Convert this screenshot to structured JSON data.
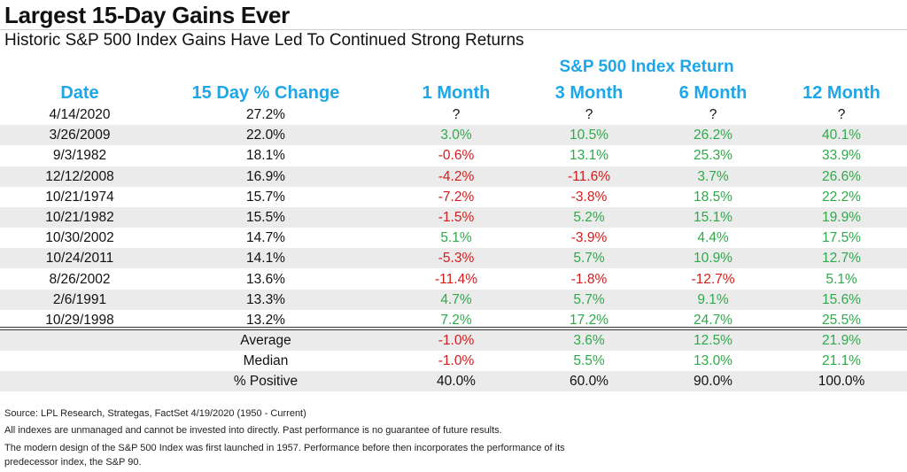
{
  "title": "Largest 15-Day Gains Ever",
  "subtitle": "Historic S&P 500 Index Gains Have Led To Continued Strong Returns",
  "colors": {
    "header": "#1ea6e8",
    "positive": "#2faa4a",
    "negative": "#d21e1e",
    "shade": "#ebebeb"
  },
  "chart_data": {
    "type": "table",
    "group_header": "S&P 500 Index Return",
    "columns": [
      "Date",
      "15 Day % Change",
      "1 Month",
      "3 Month",
      "6 Month",
      "12 Month"
    ],
    "rows": [
      [
        "4/14/2020",
        "27.2%",
        "?",
        "?",
        "?",
        "?"
      ],
      [
        "3/26/2009",
        "22.0%",
        "3.0%",
        "10.5%",
        "26.2%",
        "40.1%"
      ],
      [
        "9/3/1982",
        "18.1%",
        "-0.6%",
        "13.1%",
        "25.3%",
        "33.9%"
      ],
      [
        "12/12/2008",
        "16.9%",
        "-4.2%",
        "-11.6%",
        "3.7%",
        "26.6%"
      ],
      [
        "10/21/1974",
        "15.7%",
        "-7.2%",
        "-3.8%",
        "18.5%",
        "22.2%"
      ],
      [
        "10/21/1982",
        "15.5%",
        "-1.5%",
        "5.2%",
        "15.1%",
        "19.9%"
      ],
      [
        "10/30/2002",
        "14.7%",
        "5.1%",
        "-3.9%",
        "4.4%",
        "17.5%"
      ],
      [
        "10/24/2011",
        "14.1%",
        "-5.3%",
        "5.7%",
        "10.9%",
        "12.7%"
      ],
      [
        "8/26/2002",
        "13.6%",
        "-11.4%",
        "-1.8%",
        "-12.7%",
        "5.1%"
      ],
      [
        "2/6/1991",
        "13.3%",
        "4.7%",
        "5.7%",
        "9.1%",
        "15.6%"
      ],
      [
        "10/29/1998",
        "13.2%",
        "7.2%",
        "17.2%",
        "24.7%",
        "25.5%"
      ]
    ],
    "summary": [
      [
        "Average",
        "-1.0%",
        "3.6%",
        "12.5%",
        "21.9%"
      ],
      [
        "Median",
        "-1.0%",
        "5.5%",
        "13.0%",
        "21.1%"
      ],
      [
        "% Positive",
        "40.0%",
        "60.0%",
        "90.0%",
        "100.0%"
      ]
    ]
  },
  "footnotes": [
    "Source: LPL Research, Strategas, FactSet 4/19/2020 (1950 - Current)",
    "All indexes are unmanaged and cannot be invested into directly. Past performance is no guarantee of future results.",
    "The modern design of the S&P 500 Index was first launched in 1957. Performance before then incorporates the performance of its",
    "predecessor index, the S&P 90."
  ]
}
